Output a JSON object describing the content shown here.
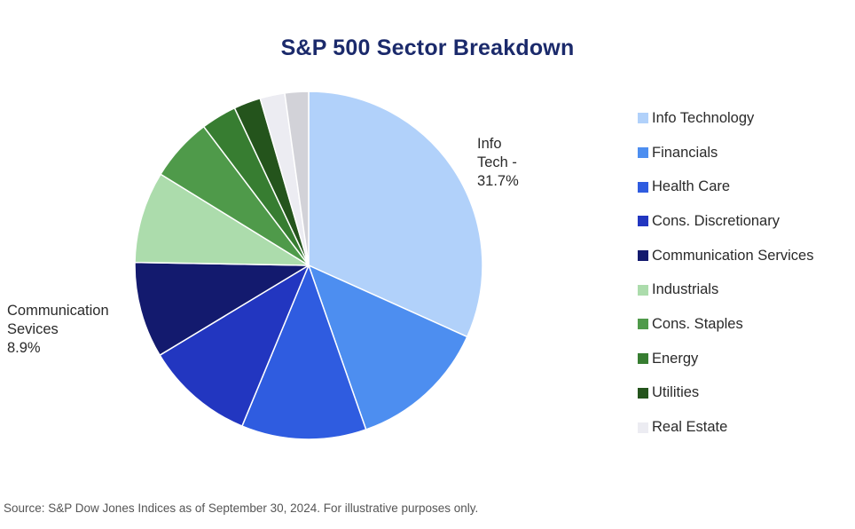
{
  "chart_data": {
    "type": "pie",
    "title": "S&P 500 Sector Breakdown",
    "start_angle_deg": 0,
    "direction": "clockwise",
    "slices": [
      {
        "name": "Info Technology",
        "value": 31.7,
        "color": "#b1d1fa"
      },
      {
        "name": "Financials",
        "value": 12.9,
        "color": "#4d8ef0"
      },
      {
        "name": "Health Care",
        "value": 11.6,
        "color": "#2f5ce0"
      },
      {
        "name": "Cons. Discretionary",
        "value": 10.1,
        "color": "#2236c0"
      },
      {
        "name": "Communication Services",
        "value": 8.9,
        "color": "#131a6e"
      },
      {
        "name": "Industrials",
        "value": 8.5,
        "color": "#acdcac"
      },
      {
        "name": "Cons. Staples",
        "value": 5.9,
        "color": "#4f9a4a"
      },
      {
        "name": "Energy",
        "value": 3.3,
        "color": "#377d31"
      },
      {
        "name": "Utilities",
        "value": 2.5,
        "color": "#24541c"
      },
      {
        "name": "Real Estate",
        "value": 2.3,
        "color": "#ececf2"
      },
      {
        "name": "",
        "value": 2.2,
        "color": "#d2d2d8"
      }
    ],
    "annotations": [
      {
        "id": "infotech",
        "lines": [
          "Info",
          "Tech -",
          "31.7%"
        ]
      },
      {
        "id": "comm",
        "lines": [
          "Communication",
          "Sevices",
          "8.9%"
        ]
      }
    ],
    "legend_position": "right"
  },
  "source": "Source: S&P Dow Jones Indices as of September 30, 2024. For illustrative purposes only."
}
